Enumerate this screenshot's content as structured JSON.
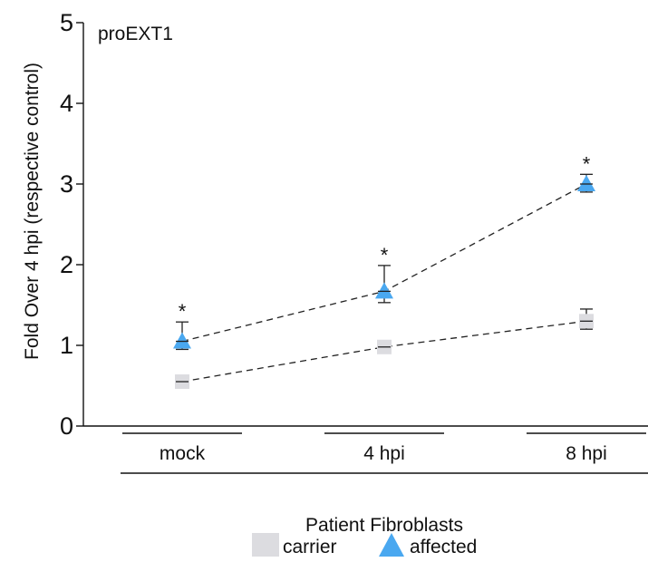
{
  "chart_data": {
    "type": "scatter",
    "panel_label": "proEXT1",
    "ylabel": "Fold Over 4 hpi (respective control)",
    "xlabel": "Patient Fibroblasts",
    "ylim": [
      0,
      5
    ],
    "y_ticks": [
      "0",
      "1",
      "2",
      "3",
      "4",
      "5"
    ],
    "categories": [
      "mock",
      "4 hpi",
      "8 hpi"
    ],
    "legend_position": "bottom-center",
    "series": [
      {
        "name": "carrier",
        "marker": "square",
        "color": "#dcdce0",
        "values": [
          0.55,
          0.98,
          1.3
        ],
        "error_low": [
          0.49,
          0.94,
          1.2
        ],
        "error_high": [
          0.62,
          1.03,
          1.45
        ]
      },
      {
        "name": "affected",
        "marker": "triangle",
        "color": "#4aa8f0",
        "values": [
          1.05,
          1.67,
          3.0
        ],
        "error_low": [
          0.95,
          1.53,
          2.9
        ],
        "error_high": [
          1.29,
          1.99,
          3.12
        ]
      }
    ],
    "significance": [
      {
        "series": "affected",
        "category": "mock",
        "label": "*"
      },
      {
        "series": "affected",
        "category": "4 hpi",
        "label": "*"
      },
      {
        "series": "affected",
        "category": "8 hpi",
        "label": "*"
      }
    ],
    "grid": false
  }
}
